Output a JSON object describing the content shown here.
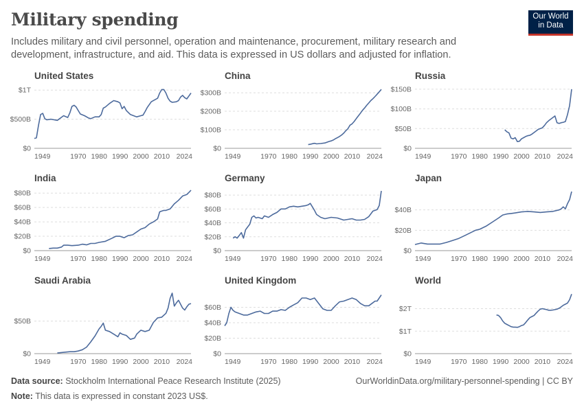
{
  "title": "Military spending",
  "subtitle": "Includes military and civil personnel, operation and maintenance, procurement, military research and development, infrastructure, and aid. This data is expressed in US dollars and adjusted for inflation.",
  "logo": {
    "line1": "Our World",
    "line2": "in Data"
  },
  "footer": {
    "source_label": "Data source:",
    "source_text": "Stockholm International Peace Research Institute (2025)",
    "note_label": "Note:",
    "note_text": "This data is expressed in constant 2023 US$.",
    "url_text": "OurWorldinData.org/military-personnel-spending | CC BY"
  },
  "colors": {
    "line": "#4c6a9c",
    "grid": "#dddddd",
    "axis": "#999999"
  },
  "chart_data": [
    {
      "type": "line",
      "title": "United States",
      "xticks": [
        1949,
        1970,
        1980,
        1990,
        2000,
        2010,
        2024
      ],
      "ylim": [
        0,
        1050
      ],
      "yticks": [
        {
          "v": 0,
          "label": "$0"
        },
        {
          "v": 500,
          "label": "$500B"
        },
        {
          "v": 1000,
          "label": "$1T"
        }
      ],
      "x": [
        1949,
        1950,
        1951,
        1952,
        1953,
        1954,
        1955,
        1957,
        1960,
        1963,
        1965,
        1966,
        1967,
        1968,
        1969,
        1970,
        1971,
        1973,
        1975,
        1976,
        1978,
        1980,
        1981,
        1982,
        1983,
        1985,
        1987,
        1989,
        1990,
        1991,
        1992,
        1993,
        1995,
        1998,
        2000,
        2001,
        2002,
        2003,
        2005,
        2008,
        2009,
        2010,
        2011,
        2012,
        2013,
        2014,
        2015,
        2017,
        2018,
        2019,
        2020,
        2021,
        2022,
        2023,
        2024
      ],
      "y": [
        170,
        180,
        400,
        580,
        600,
        510,
        490,
        500,
        480,
        560,
        530,
        610,
        720,
        740,
        710,
        650,
        590,
        560,
        520,
        510,
        540,
        540,
        580,
        690,
        710,
        770,
        820,
        800,
        780,
        680,
        720,
        650,
        580,
        540,
        560,
        570,
        630,
        700,
        800,
        860,
        950,
        1010,
        1010,
        950,
        860,
        810,
        790,
        800,
        820,
        880,
        910,
        870,
        850,
        900,
        950
      ]
    },
    {
      "type": "line",
      "title": "China",
      "xticks": [
        1949,
        1970,
        1980,
        1990,
        2000,
        2010,
        2024
      ],
      "ylim": [
        0,
        330
      ],
      "yticks": [
        {
          "v": 0,
          "label": "$0"
        },
        {
          "v": 100,
          "label": "$100B"
        },
        {
          "v": 200,
          "label": "$200B"
        },
        {
          "v": 300,
          "label": "$300B"
        }
      ],
      "x": [
        1989,
        1990,
        1991,
        1992,
        1993,
        1995,
        1997,
        1999,
        2000,
        2001,
        2002,
        2003,
        2004,
        2005,
        2006,
        2007,
        2008,
        2009,
        2010,
        2011,
        2012,
        2013,
        2014,
        2015,
        2016,
        2017,
        2018,
        2019,
        2020,
        2021,
        2022,
        2023,
        2024
      ],
      "y": [
        20,
        22,
        25,
        27,
        24,
        26,
        29,
        37,
        40,
        45,
        52,
        58,
        64,
        72,
        82,
        95,
        106,
        125,
        132,
        145,
        160,
        175,
        190,
        205,
        218,
        232,
        245,
        258,
        268,
        280,
        292,
        305,
        318
      ]
    },
    {
      "type": "line",
      "title": "Russia",
      "xticks": [
        1949,
        1970,
        1980,
        1990,
        2000,
        2010,
        2024
      ],
      "ylim": [
        0,
        155
      ],
      "yticks": [
        {
          "v": 0,
          "label": "$0"
        },
        {
          "v": 50,
          "label": "$50B"
        },
        {
          "v": 100,
          "label": "$100B"
        },
        {
          "v": 150,
          "label": "$150B"
        }
      ],
      "x": [
        1992,
        1993,
        1994,
        1995,
        1996,
        1997,
        1998,
        1999,
        2000,
        2001,
        2002,
        2003,
        2004,
        2005,
        2006,
        2007,
        2008,
        2009,
        2010,
        2011,
        2012,
        2013,
        2014,
        2015,
        2016,
        2017,
        2018,
        2019,
        2020,
        2021,
        2022,
        2023,
        2024
      ],
      "y": [
        47,
        42,
        39,
        26,
        24,
        27,
        17,
        18,
        24,
        27,
        30,
        32,
        33,
        36,
        40,
        44,
        48,
        50,
        52,
        58,
        65,
        70,
        74,
        78,
        82,
        65,
        63,
        65,
        66,
        68,
        85,
        108,
        150
      ]
    },
    {
      "type": "line",
      "title": "India",
      "xticks": [
        1949,
        1970,
        1980,
        1990,
        2000,
        2010,
        2024
      ],
      "ylim": [
        0,
        85
      ],
      "yticks": [
        {
          "v": 0,
          "label": "$0"
        },
        {
          "v": 20,
          "label": "$20B"
        },
        {
          "v": 40,
          "label": "$40B"
        },
        {
          "v": 60,
          "label": "$60B"
        },
        {
          "v": 80,
          "label": "$80B"
        }
      ],
      "x": [
        1956,
        1958,
        1960,
        1962,
        1963,
        1965,
        1967,
        1970,
        1972,
        1974,
        1976,
        1978,
        1980,
        1983,
        1986,
        1988,
        1990,
        1992,
        1994,
        1996,
        1998,
        2000,
        2002,
        2004,
        2006,
        2008,
        2009,
        2010,
        2011,
        2012,
        2014,
        2016,
        2018,
        2020,
        2022,
        2023,
        2024
      ],
      "y": [
        3,
        3.5,
        3.5,
        5,
        7.5,
        7.5,
        7,
        7.5,
        9,
        8,
        10,
        10,
        11.5,
        13,
        17,
        20,
        20,
        18,
        21,
        22,
        26,
        30,
        32,
        37,
        40,
        44,
        54,
        55,
        56,
        56,
        58,
        65,
        70,
        76,
        78,
        81,
        84
      ]
    },
    {
      "type": "line",
      "title": "Germany",
      "xticks": [
        1949,
        1970,
        1980,
        1990,
        2000,
        2010,
        2024
      ],
      "ylim": [
        0,
        88
      ],
      "yticks": [
        {
          "v": 0,
          "label": "$0"
        },
        {
          "v": 20,
          "label": "$20B"
        },
        {
          "v": 40,
          "label": "$40B"
        },
        {
          "v": 60,
          "label": "$60B"
        },
        {
          "v": 80,
          "label": "$80B"
        }
      ],
      "x": [
        1953,
        1954,
        1955,
        1956,
        1957,
        1958,
        1959,
        1960,
        1961,
        1962,
        1963,
        1964,
        1965,
        1967,
        1968,
        1970,
        1972,
        1974,
        1976,
        1978,
        1980,
        1982,
        1984,
        1986,
        1988,
        1989,
        1990,
        1991,
        1992,
        1993,
        1995,
        1997,
        2000,
        2003,
        2006,
        2008,
        2010,
        2012,
        2014,
        2016,
        2018,
        2019,
        2020,
        2022,
        2023,
        2024
      ],
      "y": [
        18,
        20,
        18,
        22,
        26,
        18,
        30,
        34,
        38,
        48,
        50,
        47,
        48,
        46,
        50,
        48,
        52,
        55,
        60,
        60,
        63,
        64,
        63,
        64,
        65,
        66,
        68,
        63,
        58,
        52,
        48,
        46,
        48,
        47,
        44,
        45,
        46,
        44,
        44,
        45,
        49,
        53,
        57,
        59,
        65,
        86
      ]
    },
    {
      "type": "line",
      "title": "Japan",
      "xticks": [
        1949,
        1970,
        1980,
        1990,
        2000,
        2010,
        2024
      ],
      "ylim": [
        0,
        60
      ],
      "yticks": [
        {
          "v": 0,
          "label": "$0"
        },
        {
          "v": 20,
          "label": "$20B"
        },
        {
          "v": 40,
          "label": "$40B"
        }
      ],
      "x": [
        1949,
        1952,
        1955,
        1958,
        1961,
        1964,
        1967,
        1970,
        1973,
        1976,
        1978,
        1980,
        1983,
        1986,
        1989,
        1991,
        1993,
        1995,
        1997,
        2000,
        2003,
        2006,
        2009,
        2012,
        2015,
        2018,
        2019,
        2020,
        2021,
        2022,
        2023,
        2024
      ],
      "y": [
        6,
        7.5,
        6.5,
        6.5,
        6.5,
        8,
        10,
        12,
        15,
        18,
        20,
        21,
        24,
        28,
        32,
        35,
        36,
        36.5,
        37,
        38,
        38.5,
        38,
        37.5,
        38,
        38.5,
        40,
        41,
        43,
        41,
        46,
        50,
        58
      ]
    },
    {
      "type": "line",
      "title": "Saudi Arabia",
      "xticks": [
        1949,
        1970,
        1980,
        1990,
        2000,
        2010,
        2024
      ],
      "ylim": [
        0,
        95
      ],
      "yticks": [
        {
          "v": 0,
          "label": "$0"
        },
        {
          "v": 50,
          "label": "$50B"
        }
      ],
      "x": [
        1960,
        1963,
        1966,
        1968,
        1970,
        1972,
        1974,
        1976,
        1978,
        1980,
        1981,
        1982,
        1983,
        1985,
        1987,
        1989,
        1990,
        1991,
        1993,
        1995,
        1997,
        1998,
        2000,
        2002,
        2004,
        2006,
        2008,
        2010,
        2012,
        2013,
        2014,
        2015,
        2016,
        2017,
        2018,
        2020,
        2021,
        2022,
        2023,
        2024
      ],
      "y": [
        1,
        2,
        3,
        3,
        4,
        6,
        10,
        18,
        27,
        38,
        42,
        47,
        36,
        34,
        30,
        26,
        32,
        30,
        28,
        22,
        24,
        30,
        36,
        34,
        36,
        48,
        55,
        56,
        62,
        70,
        85,
        93,
        73,
        78,
        82,
        70,
        67,
        72,
        76,
        77
      ]
    },
    {
      "type": "line",
      "title": "United Kingdom",
      "xticks": [
        1949,
        1970,
        1980,
        1990,
        2000,
        2010,
        2024
      ],
      "ylim": [
        0,
        80
      ],
      "yticks": [
        {
          "v": 0,
          "label": "$0"
        },
        {
          "v": 20,
          "label": "$20B"
        },
        {
          "v": 40,
          "label": "$40B"
        },
        {
          "v": 60,
          "label": "$60B"
        }
      ],
      "x": [
        1949,
        1950,
        1951,
        1952,
        1953,
        1954,
        1956,
        1958,
        1960,
        1962,
        1964,
        1966,
        1968,
        1970,
        1972,
        1974,
        1976,
        1978,
        1980,
        1982,
        1984,
        1986,
        1988,
        1990,
        1992,
        1994,
        1996,
        1998,
        2000,
        2002,
        2004,
        2006,
        2008,
        2010,
        2012,
        2014,
        2016,
        2018,
        2020,
        2021,
        2022,
        2023,
        2024
      ],
      "y": [
        36,
        40,
        52,
        60,
        56,
        54,
        52,
        50,
        50,
        52,
        54,
        55,
        52,
        52,
        55,
        55,
        57,
        56,
        60,
        63,
        66,
        72,
        72,
        70,
        72,
        65,
        58,
        56,
        56,
        62,
        67,
        68,
        70,
        72,
        70,
        65,
        62,
        62,
        66,
        68,
        68,
        72,
        76
      ]
    },
    {
      "type": "line",
      "title": "World",
      "xticks": [
        1949,
        1970,
        1980,
        1990,
        2000,
        2010,
        2024
      ],
      "ylim": [
        0,
        2.75
      ],
      "yticks": [
        {
          "v": 0,
          "label": "$0"
        },
        {
          "v": 1,
          "label": "$1T"
        },
        {
          "v": 2,
          "label": "$2T"
        }
      ],
      "x": [
        1988,
        1989,
        1990,
        1991,
        1992,
        1993,
        1994,
        1995,
        1996,
        1997,
        1998,
        1999,
        2000,
        2001,
        2002,
        2003,
        2004,
        2005,
        2006,
        2007,
        2008,
        2009,
        2010,
        2011,
        2012,
        2013,
        2014,
        2015,
        2016,
        2017,
        2018,
        2019,
        2020,
        2021,
        2022,
        2023,
        2024
      ],
      "y": [
        1.72,
        1.7,
        1.6,
        1.45,
        1.35,
        1.3,
        1.25,
        1.2,
        1.18,
        1.18,
        1.17,
        1.2,
        1.25,
        1.28,
        1.38,
        1.5,
        1.6,
        1.65,
        1.7,
        1.8,
        1.9,
        1.98,
        2.0,
        1.98,
        1.96,
        1.93,
        1.93,
        1.94,
        1.96,
        1.98,
        2.02,
        2.08,
        2.15,
        2.2,
        2.25,
        2.4,
        2.65
      ]
    }
  ]
}
